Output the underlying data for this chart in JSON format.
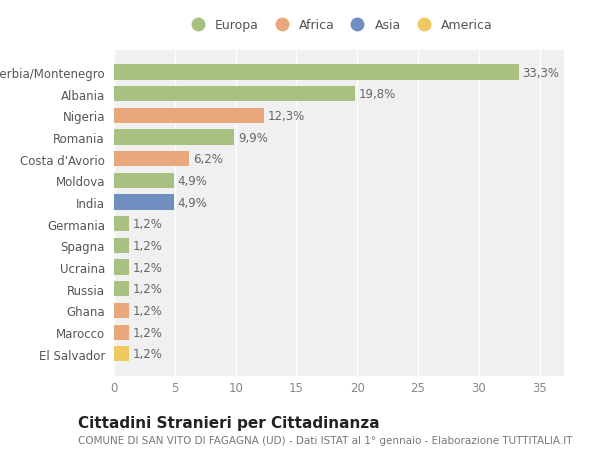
{
  "categories": [
    "Serbia/Montenegro",
    "Albania",
    "Nigeria",
    "Romania",
    "Costa d'Avorio",
    "Moldova",
    "India",
    "Germania",
    "Spagna",
    "Ucraina",
    "Russia",
    "Ghana",
    "Marocco",
    "El Salvador"
  ],
  "values": [
    33.3,
    19.8,
    12.3,
    9.9,
    6.2,
    4.9,
    4.9,
    1.2,
    1.2,
    1.2,
    1.2,
    1.2,
    1.2,
    1.2
  ],
  "labels": [
    "33,3%",
    "19,8%",
    "12,3%",
    "9,9%",
    "6,2%",
    "4,9%",
    "4,9%",
    "1,2%",
    "1,2%",
    "1,2%",
    "1,2%",
    "1,2%",
    "1,2%",
    "1,2%"
  ],
  "colors": [
    "#a8c080",
    "#a8c080",
    "#e8a87c",
    "#a8c080",
    "#e8a87c",
    "#a8c080",
    "#6e8fbf",
    "#a8c080",
    "#a8c080",
    "#a8c080",
    "#a8c080",
    "#e8a87c",
    "#e8a87c",
    "#f0c860"
  ],
  "legend_labels": [
    "Europa",
    "Africa",
    "Asia",
    "America"
  ],
  "legend_colors": [
    "#a8c080",
    "#e8a87c",
    "#6e8fbf",
    "#f0c860"
  ],
  "xlim": [
    0,
    37
  ],
  "xticks": [
    0,
    5,
    10,
    15,
    20,
    25,
    30,
    35
  ],
  "title": "Cittadini Stranieri per Cittadinanza",
  "subtitle": "COMUNE DI SAN VITO DI FAGAGNA (UD) - Dati ISTAT al 1° gennaio - Elaborazione TUTTITALIA.IT",
  "background_color": "#ffffff",
  "plot_background": "#f0f0f0",
  "grid_color": "#ffffff",
  "bar_height": 0.7,
  "label_fontsize": 8.5,
  "tick_fontsize": 8.5,
  "ytick_fontsize": 8.5,
  "title_fontsize": 11,
  "subtitle_fontsize": 7.5,
  "legend_fontsize": 9
}
